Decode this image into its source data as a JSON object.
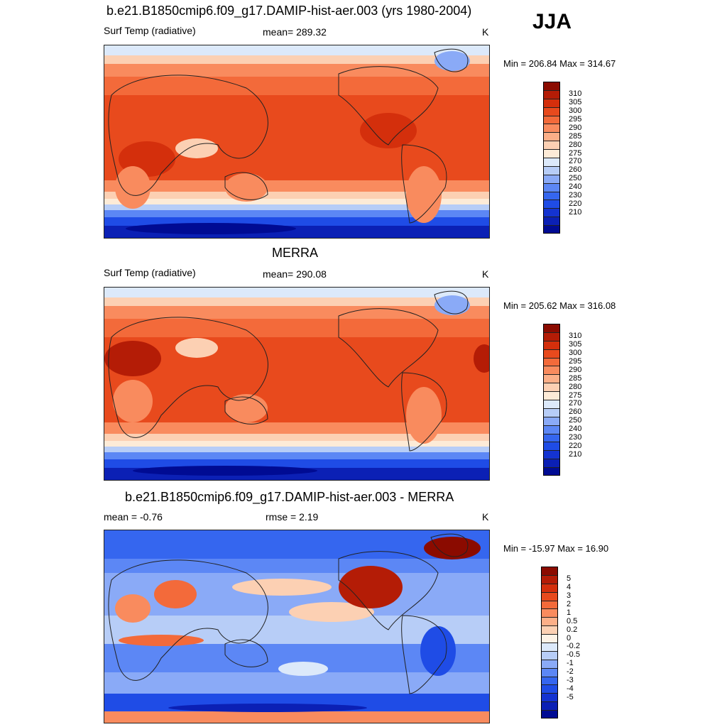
{
  "season": "JJA",
  "colors": {
    "seq": [
      "#000b93",
      "#0b20b5",
      "#1433d1",
      "#1f4ce6",
      "#3566ef",
      "#5c87f5",
      "#8aaaf7",
      "#b7cdf7",
      "#dce9fa",
      "#fdebd7",
      "#fcd0b3",
      "#fcaf88",
      "#f98b5e",
      "#f36a3a",
      "#e84a1d",
      "#d42f0c",
      "#b41c06",
      "#8b0b00"
    ],
    "diff": [
      "#000b93",
      "#0b20b5",
      "#1433d1",
      "#1f4ce6",
      "#3566ef",
      "#5c87f5",
      "#8aaaf7",
      "#b7cdf7",
      "#dce9fa",
      "#fdf2e6",
      "#fcd0b3",
      "#fcaf88",
      "#f98b5e",
      "#f36a3a",
      "#e84a1d",
      "#d42f0c",
      "#b41c06",
      "#8b0b00"
    ]
  },
  "panels": [
    {
      "title": "b.e21.B1850cmip6.f09_g17.DAMIP-hist-aer.003 (yrs 1980-2004)",
      "left_label": "Surf Temp (radiative)",
      "center_label": "mean= 289.32",
      "units": "K",
      "minmax": "Min = 206.84 Max = 314.67",
      "cbar_labels": [
        "310",
        "305",
        "300",
        "295",
        "290",
        "285",
        "280",
        "275",
        "270",
        "260",
        "250",
        "240",
        "230",
        "220",
        "210"
      ]
    },
    {
      "title": "MERRA",
      "left_label": "Surf Temp (radiative)",
      "center_label": "mean= 290.08",
      "units": "K",
      "minmax": "Min = 205.62 Max = 316.08",
      "cbar_labels": [
        "310",
        "305",
        "300",
        "295",
        "290",
        "285",
        "280",
        "275",
        "270",
        "260",
        "250",
        "240",
        "230",
        "220",
        "210"
      ]
    },
    {
      "title": "b.e21.B1850cmip6.f09_g17.DAMIP-hist-aer.003 - MERRA",
      "left_label": "mean =  -0.76",
      "center_label": "rmse =   2.19",
      "units": "K",
      "minmax": "Min = -15.97 Max =  16.90",
      "cbar_labels": [
        "5",
        "4",
        "3",
        "2",
        "1",
        "0.5",
        "0.2",
        "0",
        "-0.2",
        "-0.5",
        "-1",
        "-2",
        "-3",
        "-4",
        "-5"
      ]
    }
  ]
}
